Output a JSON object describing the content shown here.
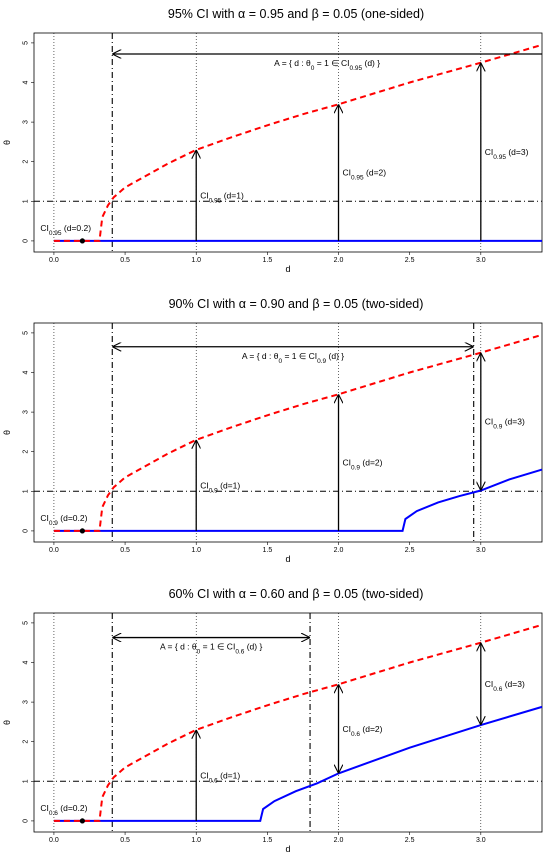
{
  "chart_data": [
    {
      "type": "line",
      "title": "95% CI with  α = 0.95 and  β = 0.05 (one-sided)",
      "x_label": "d",
      "y_label": "θ",
      "xlim": [
        -0.14,
        3.43
      ],
      "ylim": [
        -0.28,
        5.25
      ],
      "xticks": [
        {
          "value": 0,
          "label": "0.0"
        },
        {
          "value": 0.5,
          "label": "0.5"
        },
        {
          "value": 1,
          "label": "1.0"
        },
        {
          "value": 1.5,
          "label": "1.5"
        },
        {
          "value": 2,
          "label": "2.0"
        },
        {
          "value": 2.5,
          "label": "2.5"
        },
        {
          "value": 3,
          "label": "3.0"
        }
      ],
      "yticks": [
        0,
        1,
        2,
        3,
        4,
        5
      ],
      "vlines": [
        0,
        1,
        2,
        3
      ],
      "theta0": 1,
      "series": [
        {
          "color": "#0000ff",
          "line_style": "solid",
          "x": [
            0,
            3.43
          ],
          "values": [
            0,
            0
          ]
        },
        {
          "color": "#ff0000",
          "line_style": "dashed",
          "x": [
            0,
            0.32,
            0.34,
            0.38,
            0.42,
            0.5,
            0.6,
            0.8,
            1.0,
            1.25,
            1.5,
            1.75,
            2.0,
            2.5,
            3.0,
            3.43
          ],
          "values": [
            0,
            0,
            0.6,
            0.9,
            1.1,
            1.35,
            1.55,
            1.95,
            2.3,
            2.62,
            2.92,
            3.2,
            3.45,
            4.0,
            4.5,
            4.95
          ]
        }
      ],
      "point": {
        "d": 0.2,
        "value": 0,
        "label": [
          "CI",
          "0.95",
          " (d=0.2)"
        ]
      },
      "intervals": [
        {
          "d": 1,
          "lower": 0,
          "upper": 2.3,
          "label": [
            "CI",
            "0.95",
            " (d=1)"
          ]
        },
        {
          "d": 2,
          "lower": 0,
          "upper": 3.45,
          "label": [
            "CI",
            "0.95",
            " (d=2)"
          ]
        },
        {
          "d": 3,
          "lower": 0,
          "upper": 4.5,
          "label": [
            "CI",
            "0.95",
            " (d=3)"
          ]
        }
      ],
      "set": {
        "from": 0.41,
        "to": null,
        "theta": 4.72,
        "label": [
          "A = { d :  θ",
          "0",
          " = 1 ∈ CI",
          "0.95",
          " (d) }"
        ]
      }
    },
    {
      "type": "line",
      "title": "90% CI with  α = 0.90 and  β = 0.05 (two-sided)",
      "x_label": "d",
      "y_label": "θ",
      "xlim": [
        -0.14,
        3.43
      ],
      "ylim": [
        -0.28,
        5.25
      ],
      "xticks": [
        {
          "value": 0,
          "label": "0.0"
        },
        {
          "value": 0.5,
          "label": "0.5"
        },
        {
          "value": 1,
          "label": "1.0"
        },
        {
          "value": 1.5,
          "label": "1.5"
        },
        {
          "value": 2,
          "label": "2.0"
        },
        {
          "value": 2.5,
          "label": "2.5"
        },
        {
          "value": 3,
          "label": "3.0"
        }
      ],
      "yticks": [
        0,
        1,
        2,
        3,
        4,
        5
      ],
      "vlines": [
        0,
        1,
        2,
        3
      ],
      "theta0": 1,
      "series": [
        {
          "color": "#0000ff",
          "line_style": "solid",
          "x": [
            0,
            2.45,
            2.47,
            2.55,
            2.7,
            2.85,
            3.0,
            3.2,
            3.43
          ],
          "values": [
            0,
            0,
            0.3,
            0.5,
            0.72,
            0.88,
            1.02,
            1.3,
            1.55
          ]
        },
        {
          "color": "#ff0000",
          "line_style": "dashed",
          "x": [
            0,
            0.32,
            0.34,
            0.38,
            0.42,
            0.5,
            0.6,
            0.8,
            1.0,
            1.25,
            1.5,
            1.75,
            2.0,
            2.5,
            3.0,
            3.43
          ],
          "values": [
            0,
            0,
            0.6,
            0.9,
            1.1,
            1.35,
            1.55,
            1.95,
            2.3,
            2.62,
            2.92,
            3.2,
            3.45,
            4.0,
            4.5,
            4.95
          ]
        }
      ],
      "point": {
        "d": 0.2,
        "value": 0,
        "label": [
          "CI",
          "0.9",
          " (d=0.2)"
        ]
      },
      "intervals": [
        {
          "d": 1,
          "lower": 0,
          "upper": 2.3,
          "label": [
            "CI",
            "0.9",
            " (d=1)"
          ]
        },
        {
          "d": 2,
          "lower": 0,
          "upper": 3.45,
          "label": [
            "CI",
            "0.9",
            " (d=2)"
          ]
        },
        {
          "d": 3,
          "lower": 1.02,
          "upper": 4.5,
          "label": [
            "CI",
            "0.9",
            " (d=3)"
          ]
        }
      ],
      "set": {
        "from": 0.41,
        "to": 2.95,
        "theta": 4.65,
        "label": [
          "A = { d :  θ",
          "0",
          " = 1 ∈ CI",
          "0.9",
          " (d) }"
        ]
      }
    },
    {
      "type": "line",
      "title": "60% CI with  α = 0.60 and  β = 0.05 (two-sided)",
      "x_label": "d",
      "y_label": "θ",
      "xlim": [
        -0.14,
        3.43
      ],
      "ylim": [
        -0.28,
        5.25
      ],
      "xticks": [
        {
          "value": 0,
          "label": "0.0"
        },
        {
          "value": 0.5,
          "label": "0.5"
        },
        {
          "value": 1,
          "label": "1.0"
        },
        {
          "value": 1.5,
          "label": "1.5"
        },
        {
          "value": 2,
          "label": "2.0"
        },
        {
          "value": 2.5,
          "label": "2.5"
        },
        {
          "value": 3,
          "label": "3.0"
        }
      ],
      "yticks": [
        0,
        1,
        2,
        3,
        4,
        5
      ],
      "vlines": [
        0,
        1,
        2,
        3
      ],
      "theta0": 1,
      "series": [
        {
          "color": "#0000ff",
          "line_style": "solid",
          "x": [
            0,
            1.45,
            1.47,
            1.55,
            1.7,
            1.85,
            2.0,
            2.5,
            3.0,
            3.43
          ],
          "values": [
            0,
            0,
            0.3,
            0.5,
            0.75,
            0.95,
            1.2,
            1.85,
            2.42,
            2.88
          ]
        },
        {
          "color": "#ff0000",
          "line_style": "dashed",
          "x": [
            0,
            0.32,
            0.34,
            0.38,
            0.42,
            0.5,
            0.6,
            0.8,
            1.0,
            1.25,
            1.5,
            1.75,
            2.0,
            2.5,
            3.0,
            3.43
          ],
          "values": [
            0,
            0,
            0.6,
            0.9,
            1.1,
            1.35,
            1.55,
            1.95,
            2.3,
            2.62,
            2.92,
            3.2,
            3.45,
            4.0,
            4.5,
            4.95
          ]
        }
      ],
      "point": {
        "d": 0.2,
        "value": 0,
        "label": [
          "CI",
          "0.6",
          " (d=0.2)"
        ]
      },
      "intervals": [
        {
          "d": 1,
          "lower": 0,
          "upper": 2.3,
          "label": [
            "CI",
            "0.6",
            " (d=1)"
          ]
        },
        {
          "d": 2,
          "lower": 1.2,
          "upper": 3.45,
          "label": [
            "CI",
            "0.6",
            " (d=2)"
          ]
        },
        {
          "d": 3,
          "lower": 2.42,
          "upper": 4.5,
          "label": [
            "CI",
            "0.6",
            " (d=3)"
          ]
        }
      ],
      "set": {
        "from": 0.41,
        "to": 1.8,
        "theta": 4.63,
        "label": [
          "A = { d :  θ",
          "0",
          " = 1 ∈ CI",
          "0.6",
          " (d) }"
        ]
      }
    }
  ]
}
